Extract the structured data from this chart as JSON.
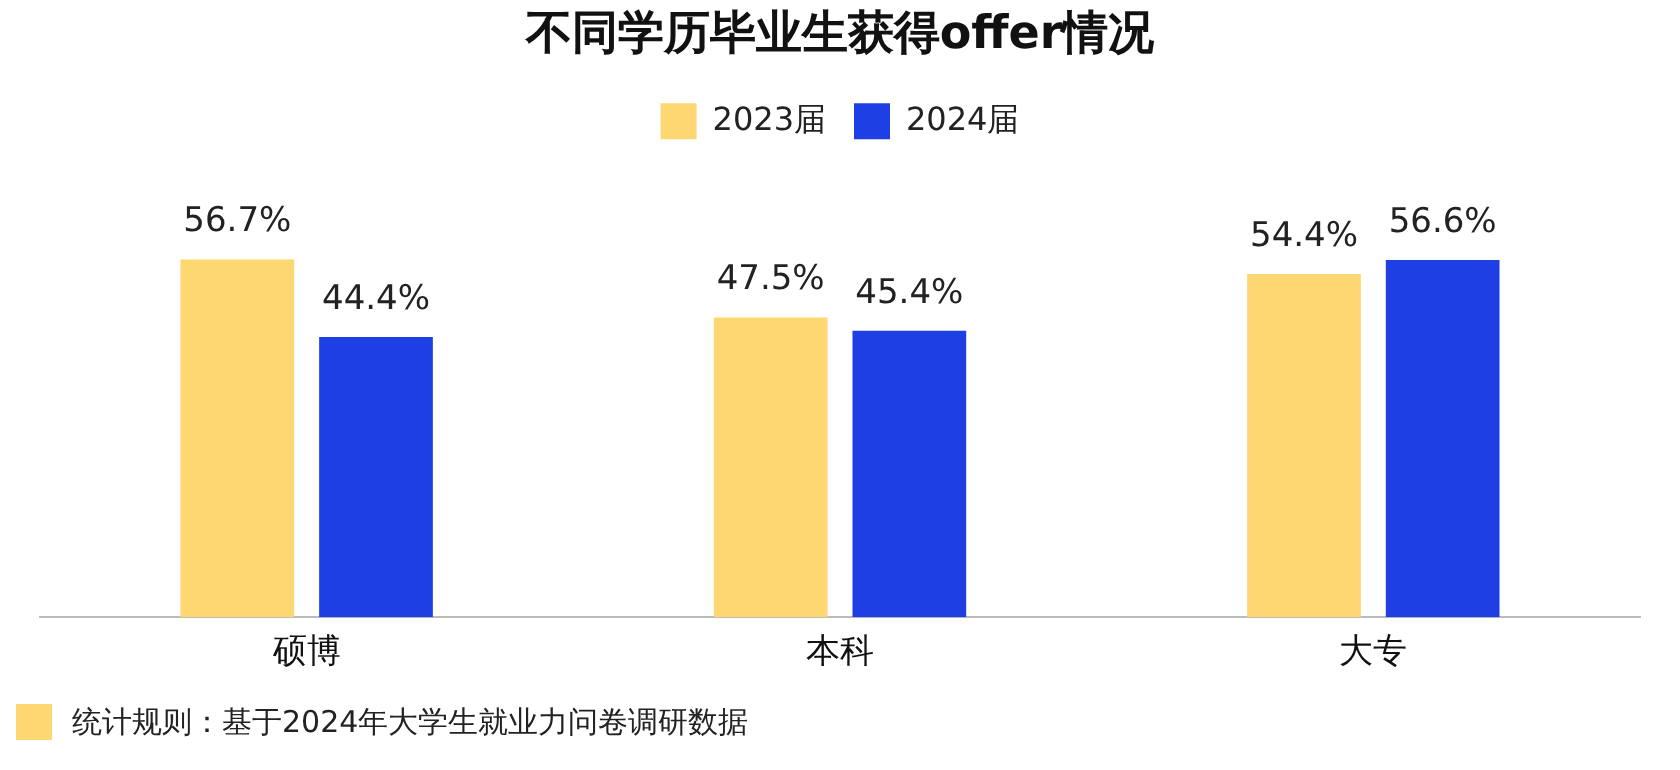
{
  "chart_data": {
    "type": "bar",
    "title": "不同学历毕业生获得offer情况",
    "categories": [
      "硕博",
      "本科",
      "大专"
    ],
    "series": [
      {
        "name": "2023届",
        "color": "#fdd771",
        "values": [
          56.7,
          47.5,
          54.4
        ],
        "value_labels": [
          "56.7%",
          "47.5%",
          "54.4%"
        ]
      },
      {
        "name": "2024届",
        "color": "#1e3fe3",
        "values": [
          44.4,
          45.4,
          56.6
        ],
        "value_labels": [
          "44.4%",
          "45.4%",
          "56.6%"
        ]
      }
    ],
    "legend": "top",
    "grid": false,
    "tick_labels": "x",
    "annotations": [
      "统计规则：基于2024年大学生就业力问卷调研数据"
    ]
  }
}
